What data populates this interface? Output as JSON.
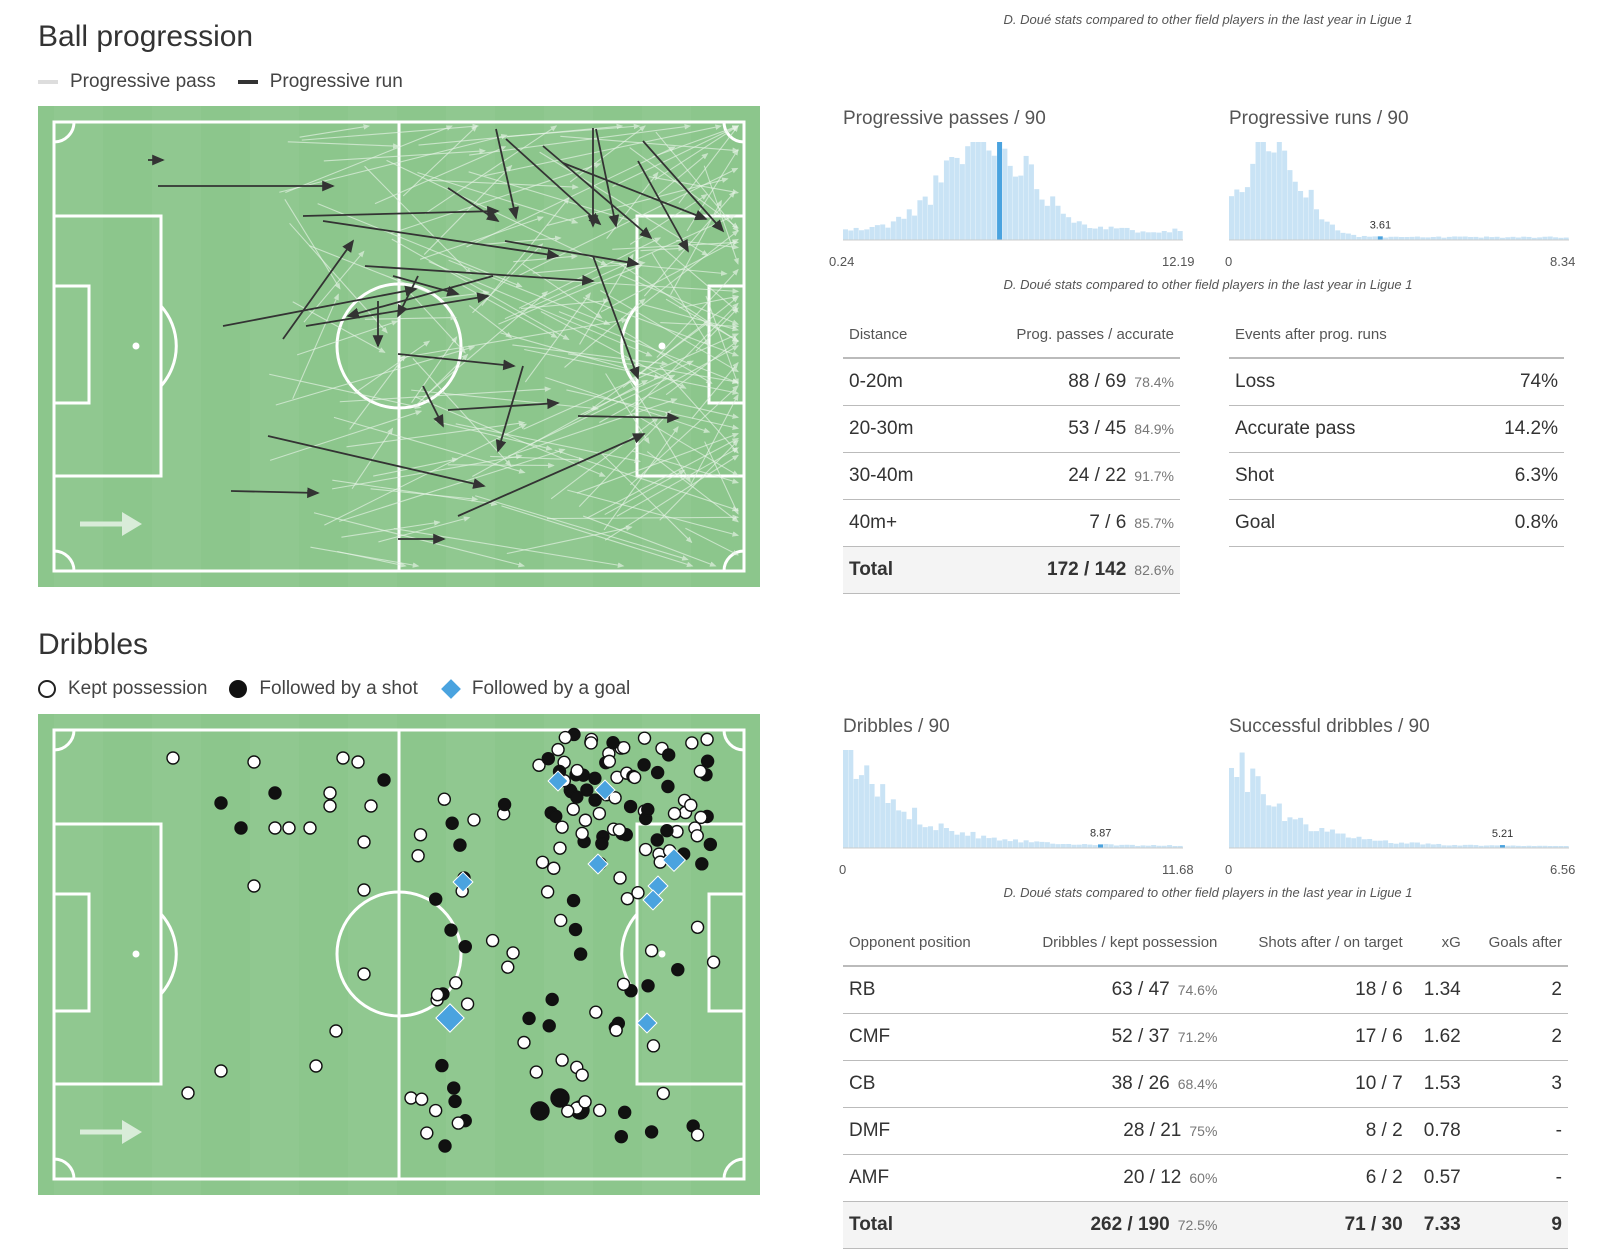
{
  "top_caption": "D. Doué stats compared to other field players in the last year in Ligue 1",
  "ball_progression": {
    "title": "Ball progression",
    "legend": {
      "pass": "Progressive pass",
      "run": "Progressive run"
    },
    "hist1": {
      "title": "Progressive passes / 90",
      "min": "0.24",
      "max": "12.19",
      "marker": "5.57"
    },
    "hist2": {
      "title": "Progressive runs / 90",
      "min": "0",
      "max": "8.34",
      "marker": "3.61"
    },
    "caption": "D. Doué stats compared to other field players in the last year in Ligue 1",
    "pass_table": {
      "headers": [
        "Distance",
        "Prog. passes / accurate"
      ],
      "rows": [
        {
          "label": "0-20m",
          "value": "88 / 69",
          "pct": "78.4%"
        },
        {
          "label": "20-30m",
          "value": "53 / 45",
          "pct": "84.9%"
        },
        {
          "label": "30-40m",
          "value": "24 / 22",
          "pct": "91.7%"
        },
        {
          "label": "40m+",
          "value": "7 / 6",
          "pct": "85.7%"
        },
        {
          "label": "Total",
          "value": "172 / 142",
          "pct": "82.6%"
        }
      ]
    },
    "runs_table": {
      "header": "Events after prog. runs",
      "rows": [
        {
          "label": "Loss",
          "value": "74%"
        },
        {
          "label": "Accurate pass",
          "value": "14.2%"
        },
        {
          "label": "Shot",
          "value": "6.3%"
        },
        {
          "label": "Goal",
          "value": "0.8%"
        }
      ]
    }
  },
  "dribbles": {
    "title": "Dribbles",
    "legend": {
      "kept": "Kept possession",
      "shot": "Followed by a shot",
      "goal": "Followed by a goal"
    },
    "hist1": {
      "title": "Dribbles / 90",
      "min": "0",
      "max": "11.68",
      "marker": "8.87"
    },
    "hist2": {
      "title": "Successful dribbles / 90",
      "min": "0",
      "max": "6.56",
      "marker": "5.21"
    },
    "caption": "D. Doué stats compared to other field players in the last year in Ligue 1",
    "table": {
      "headers": [
        "Opponent position",
        "Dribbles / kept possession",
        "Shots after / on target",
        "xG",
        "Goals after"
      ],
      "rows": [
        {
          "pos": "RB",
          "drib": "63 / 47",
          "pct": "74.6%",
          "shots": "18 / 6",
          "xg": "1.34",
          "goals": "2"
        },
        {
          "pos": "CMF",
          "drib": "52 / 37",
          "pct": "71.2%",
          "shots": "17 / 6",
          "xg": "1.62",
          "goals": "2"
        },
        {
          "pos": "CB",
          "drib": "38 / 26",
          "pct": "68.4%",
          "shots": "10 / 7",
          "xg": "1.53",
          "goals": "3"
        },
        {
          "pos": "DMF",
          "drib": "28 / 21",
          "pct": "75%",
          "shots": "8 / 2",
          "xg": "0.78",
          "goals": "-"
        },
        {
          "pos": "AMF",
          "drib": "20 / 12",
          "pct": "60%",
          "shots": "6 / 2",
          "xg": "0.57",
          "goals": "-"
        },
        {
          "pos": "Total",
          "drib": "262 / 190",
          "pct": "72.5%",
          "shots": "71 / 30",
          "xg": "7.33",
          "goals": "9"
        }
      ]
    }
  },
  "colors": {
    "pitch": "#8cc68c",
    "pitch_stripe": "#93ca93",
    "hist": "#c9e3f5",
    "hist_marker": "#4aa3df",
    "goal_marker": "#4aa3df"
  }
}
